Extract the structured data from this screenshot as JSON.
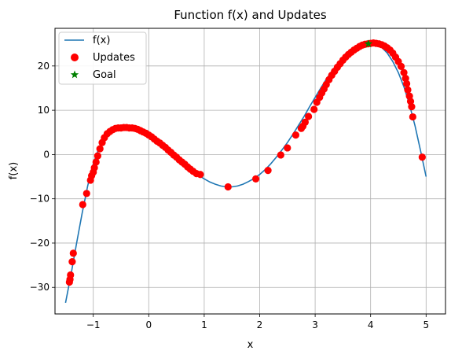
{
  "chart_data": {
    "type": "line",
    "title": "Function f(x) and Updates",
    "xlabel": "x",
    "ylabel": "f(x)",
    "xlim": [
      -1.69,
      5.35
    ],
    "ylim": [
      -36.0,
      28.5
    ],
    "xticks": [
      -1,
      0,
      1,
      2,
      3,
      4,
      5
    ],
    "yticks": [
      -30,
      -20,
      -10,
      0,
      10,
      20
    ],
    "x_tick_labels": [
      "−1",
      "0",
      "1",
      "2",
      "3",
      "4",
      "5"
    ],
    "y_tick_labels": [
      "−30",
      "−20",
      "−10",
      "0",
      "10",
      "20"
    ],
    "grid": true,
    "legend_position": "top-left",
    "colors": {
      "line": "#1f77b4",
      "updates": "#ff0000",
      "goal": "#008000",
      "grid": "#b0b0b0"
    },
    "series": [
      {
        "name": "f(x)",
        "kind": "line",
        "x": [
          -1.5,
          -1.4,
          -1.3,
          -1.2,
          -1.1,
          -1.0,
          -0.9,
          -0.8,
          -0.7,
          -0.6,
          -0.5,
          -0.4,
          -0.3,
          -0.2,
          -0.1,
          0.0,
          0.1,
          0.2,
          0.3,
          0.4,
          0.5,
          0.6,
          0.7,
          0.8,
          0.9,
          1.0,
          1.1,
          1.2,
          1.3,
          1.4,
          1.5,
          1.6,
          1.7,
          1.8,
          1.9,
          2.0,
          2.1,
          2.2,
          2.3,
          2.4,
          2.5,
          2.6,
          2.7,
          2.8,
          2.9,
          3.0,
          3.1,
          3.2,
          3.3,
          3.4,
          3.5,
          3.6,
          3.7,
          3.8,
          3.9,
          4.0,
          4.1,
          4.2,
          4.3,
          4.4,
          4.5,
          4.6,
          4.7,
          4.8,
          4.9,
          5.0
        ],
        "y": [
          -33.5,
          -27.0,
          -20.0,
          -13.2,
          -7.0,
          -2.1,
          1.5,
          3.8,
          5.0,
          5.8,
          6.0,
          6.1,
          6.0,
          5.7,
          5.1,
          4.4,
          3.5,
          2.6,
          1.6,
          0.5,
          -0.6,
          -1.7,
          -2.8,
          -3.8,
          -4.7,
          -5.5,
          -6.2,
          -6.7,
          -7.1,
          -7.3,
          -7.3,
          -7.1,
          -6.7,
          -6.1,
          -5.4,
          -4.5,
          -3.4,
          -2.1,
          -0.6,
          1.0,
          2.7,
          4.6,
          6.6,
          8.6,
          10.8,
          12.9,
          15.0,
          17.0,
          18.8,
          20.5,
          21.9,
          23.1,
          24.0,
          24.7,
          25.1,
          25.2,
          24.9,
          24.2,
          22.9,
          21.0,
          18.5,
          15.3,
          11.3,
          6.5,
          0.9,
          -5.0
        ]
      },
      {
        "name": "Updates",
        "kind": "scatter",
        "x": [
          -1.43,
          -1.42,
          -1.41,
          -1.38,
          -1.36,
          -1.19,
          -1.12,
          -1.05,
          -1.03,
          -1.0,
          -0.98,
          -0.95,
          -0.92,
          -0.88,
          -0.84,
          -0.8,
          -0.75,
          -0.7,
          -0.65,
          -0.6,
          -0.55,
          -0.5,
          -0.45,
          -0.4,
          -0.35,
          -0.3,
          -0.25,
          -0.2,
          -0.15,
          -0.1,
          -0.05,
          0.0,
          0.05,
          0.1,
          0.15,
          0.2,
          0.25,
          0.3,
          0.35,
          0.4,
          0.45,
          0.5,
          0.55,
          0.6,
          0.65,
          0.7,
          0.75,
          0.8,
          0.86,
          0.93,
          1.43,
          1.93,
          2.15,
          2.38,
          2.5,
          2.65,
          2.75,
          2.78,
          2.82,
          2.88,
          2.98,
          3.03,
          3.08,
          3.12,
          3.16,
          3.2,
          3.25,
          3.3,
          3.35,
          3.4,
          3.45,
          3.5,
          3.55,
          3.6,
          3.65,
          3.7,
          3.75,
          3.8,
          3.85,
          3.9,
          3.95,
          4.0,
          4.05,
          4.1,
          4.15,
          4.2,
          4.25,
          4.3,
          4.35,
          4.4,
          4.45,
          4.5,
          4.55,
          4.6,
          4.63,
          4.65,
          4.67,
          4.7,
          4.72,
          4.74,
          4.76,
          4.93
        ],
        "y": [
          -28.8,
          -28.2,
          -27.2,
          -24.2,
          -22.3,
          -11.3,
          -8.8,
          -5.8,
          -4.8,
          -4.0,
          -3.0,
          -1.7,
          -0.3,
          1.3,
          2.7,
          3.8,
          4.7,
          5.2,
          5.6,
          5.9,
          6.0,
          6.0,
          6.1,
          6.1,
          6.0,
          6.0,
          5.9,
          5.7,
          5.4,
          5.1,
          4.8,
          4.4,
          4.0,
          3.5,
          3.0,
          2.6,
          2.1,
          1.6,
          1.0,
          0.5,
          -0.1,
          -0.6,
          -1.2,
          -1.7,
          -2.2,
          -2.8,
          -3.3,
          -3.8,
          -4.3,
          -4.5,
          -7.3,
          -5.5,
          -3.6,
          -0.1,
          1.5,
          4.4,
          5.9,
          6.4,
          7.3,
          8.6,
          10.2,
          11.8,
          12.9,
          13.9,
          14.8,
          15.8,
          16.9,
          17.9,
          18.8,
          19.7,
          20.5,
          21.3,
          22.0,
          22.6,
          23.1,
          23.6,
          24.0,
          24.4,
          24.7,
          24.9,
          25.0,
          25.1,
          25.2,
          25.1,
          25.0,
          24.8,
          24.5,
          24.1,
          23.6,
          22.9,
          22.0,
          21.0,
          19.9,
          18.5,
          17.2,
          16.0,
          14.6,
          13.2,
          12.0,
          10.8,
          8.5,
          -0.6
        ]
      },
      {
        "name": "Goal",
        "kind": "marker",
        "x": [
          3.96
        ],
        "y": [
          25.0
        ]
      }
    ]
  }
}
